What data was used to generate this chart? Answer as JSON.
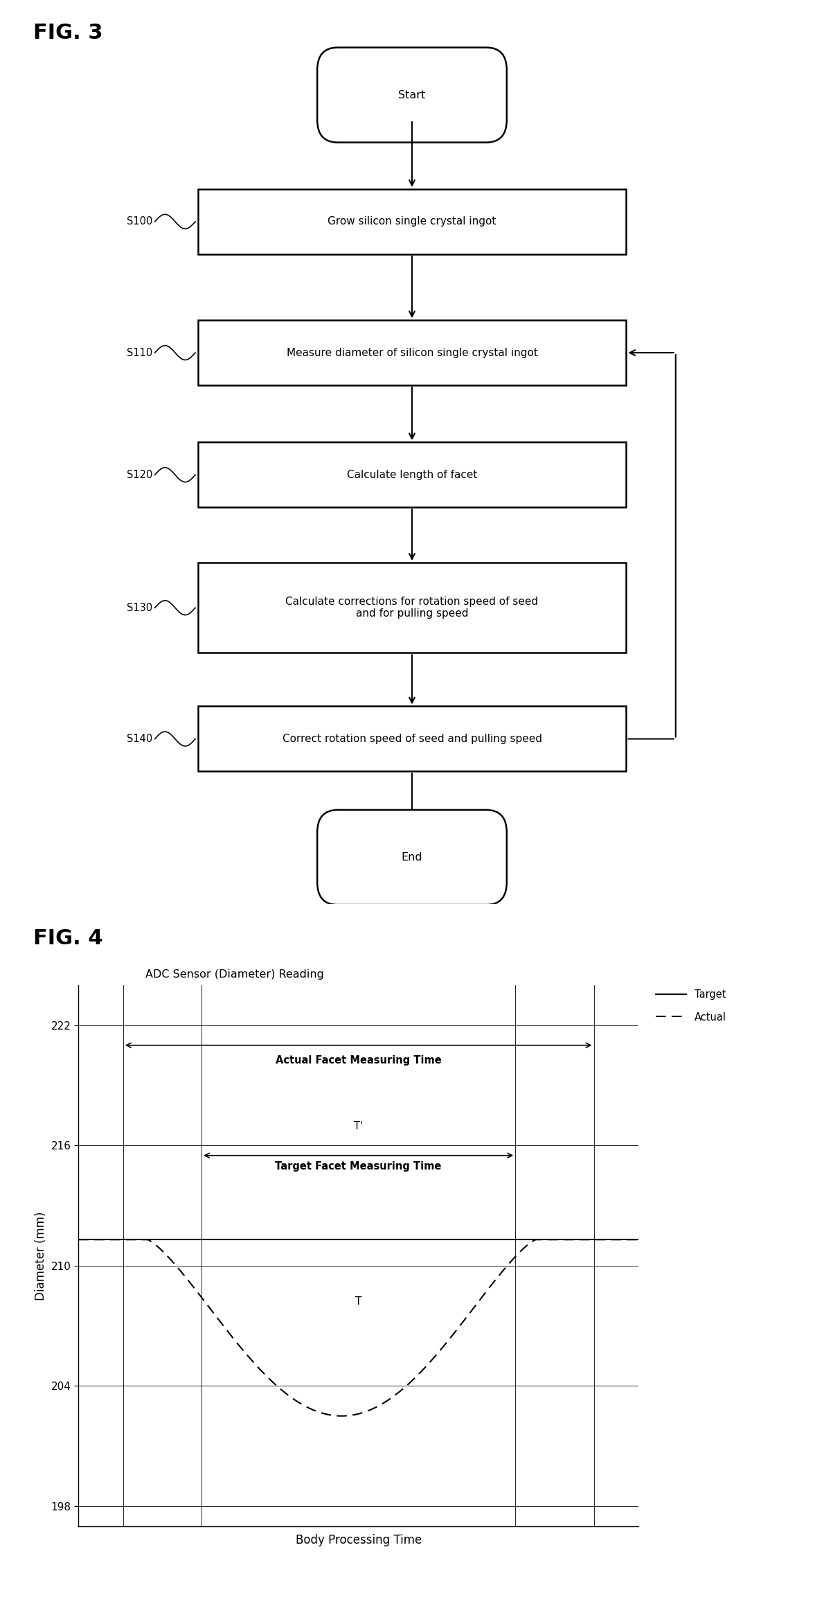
{
  "fig3_title": "FIG. 3",
  "fig4_title": "FIG. 4",
  "flowchart": {
    "start_label": "Start",
    "end_label": "End",
    "steps": [
      {
        "id": "S100",
        "label": "Grow silicon single crystal ingot"
      },
      {
        "id": "S110",
        "label": "Measure diameter of silicon single crystal ingot"
      },
      {
        "id": "S120",
        "label": "Calculate length of facet"
      },
      {
        "id": "S130",
        "label": "Calculate corrections for rotation speed of seed\nand for pulling speed"
      },
      {
        "id": "S140",
        "label": "Correct rotation speed of seed and pulling speed"
      }
    ]
  },
  "graph": {
    "title": "ADC Sensor (Diameter) Reading",
    "xlabel": "Body Processing Time",
    "ylabel": "Diameter (mm)",
    "ylim": [
      197,
      224
    ],
    "yticks": [
      198,
      204,
      210,
      216,
      222
    ],
    "legend_target": "Target",
    "legend_actual": "Actual",
    "target_value": 211.3,
    "annotation_actual_facet": "Actual Facet Measuring Time",
    "annotation_target_facet": "Target Facet Measuring Time",
    "annotation_T": "T",
    "annotation_Tprime": "T'",
    "vlines_actual": [
      0.08,
      0.92
    ],
    "vlines_target": [
      0.22,
      0.78
    ]
  },
  "background_color": "#ffffff",
  "font_family": "DejaVu Sans"
}
